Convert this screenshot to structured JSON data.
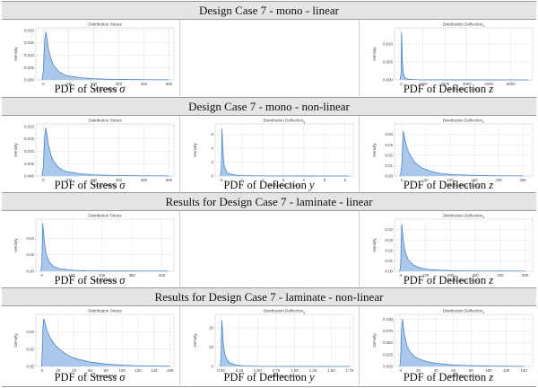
{
  "sections": [
    {
      "title": "Design Case 7 - mono - linear"
    },
    {
      "title": "Design Case 7 - mono - non-linear"
    },
    {
      "title": "Results for Design Case 7 - laminate - linear"
    },
    {
      "title": "Results for Design Case 7 - laminate - non-linear"
    }
  ],
  "colors": {
    "fill": "#a9c8ea",
    "line": "#4a86c8",
    "grid": "#e1e1e1",
    "header_bg": "#e4e4e4"
  },
  "chart_data": [
    {
      "section": 0,
      "slot": 0,
      "type": "area",
      "title": "Distribution Stress",
      "xlabel": "Stress [MPa]",
      "ylabel": "Density",
      "caption_text": "PDF of Stress ",
      "caption_sym": "σ",
      "xlim": [
        -30,
        520
      ],
      "ylim": [
        0,
        0.021
      ],
      "xticks": [
        0,
        100,
        200,
        300,
        400,
        500
      ],
      "xtick_labels": [
        "0",
        "100",
        "200",
        "300",
        "400",
        "500"
      ],
      "yticks": [
        0,
        0.005,
        0.01,
        0.015,
        0.02
      ],
      "ytick_labels": [
        "0.000",
        "0.005",
        "0.010",
        "0.015",
        "0.020"
      ],
      "x": [
        -5,
        0,
        5,
        10,
        15,
        20,
        30,
        40,
        60,
        80,
        100,
        150,
        200,
        250,
        300,
        400,
        500
      ],
      "y": [
        0,
        0.004,
        0.016,
        0.0195,
        0.016,
        0.0125,
        0.0085,
        0.006,
        0.0035,
        0.0022,
        0.0016,
        0.0009,
        0.0005,
        0.0003,
        0.0002,
        0.0001,
        5e-05
      ]
    },
    {
      "section": 0,
      "slot": 2,
      "type": "area",
      "title": "Distribution Deflection",
      "title_sub": "z",
      "xlabel": "Deflection",
      "xlabel_sub": "z",
      "xlabel_unit": " [mm]",
      "ylabel": "Density",
      "caption_text": "PDF of Deflection ",
      "caption_sym": "z",
      "xlim": [
        -300,
        6000
      ],
      "ylim": [
        0,
        0.0145
      ],
      "xticks": [
        0,
        1000,
        2000,
        3000,
        4000,
        5000
      ],
      "xtick_labels": [
        "0",
        "1000",
        "2000",
        "3000",
        "4000",
        "5000"
      ],
      "yticks": [
        0,
        0.005,
        0.01
      ],
      "ytick_labels": [
        "0.000",
        "0.005",
        "0.010"
      ],
      "x": [
        -50,
        0,
        20,
        40,
        60,
        100,
        150,
        200,
        300,
        500,
        800,
        1500,
        3000,
        5800
      ],
      "y": [
        0,
        0.002,
        0.0132,
        0.009,
        0.005,
        0.002,
        0.0009,
        0.0005,
        0.0002,
        0.0001,
        4e-05,
        2e-05,
        1e-05,
        0
      ]
    },
    {
      "section": 1,
      "slot": 0,
      "type": "area",
      "title": "Distribution Stress",
      "xlabel": "Stress [MPa]",
      "ylabel": "Density",
      "caption_text": "PDF of Stress ",
      "caption_sym": "σ",
      "xlim": [
        -30,
        520
      ],
      "ylim": [
        0,
        0.021
      ],
      "xticks": [
        0,
        100,
        200,
        300,
        400,
        500
      ],
      "xtick_labels": [
        "0",
        "100",
        "200",
        "300",
        "400",
        "500"
      ],
      "yticks": [
        0,
        0.005,
        0.01,
        0.015,
        0.02
      ],
      "ytick_labels": [
        "0.000",
        "0.005",
        "0.010",
        "0.015",
        "0.020"
      ],
      "x": [
        -5,
        0,
        5,
        10,
        15,
        20,
        30,
        40,
        60,
        80,
        100,
        150,
        200,
        250,
        300,
        400,
        500
      ],
      "y": [
        0,
        0.004,
        0.016,
        0.0195,
        0.016,
        0.0125,
        0.0085,
        0.006,
        0.0035,
        0.0022,
        0.0016,
        0.0009,
        0.0005,
        0.0003,
        0.0002,
        0.0001,
        5e-05
      ]
    },
    {
      "section": 1,
      "slot": 1,
      "type": "area",
      "title": "Distribution Deflection",
      "title_sub": "y",
      "xlabel": "Deflection",
      "xlabel_sub": "y",
      "xlabel_unit": " [mm]",
      "ylabel": "Density",
      "caption_text": "PDF of Deflection ",
      "caption_sym": "y",
      "xlim": [
        -0.3,
        6.4
      ],
      "ylim": [
        0,
        7.5
      ],
      "xticks": [
        0,
        1,
        2,
        3,
        4,
        5,
        6
      ],
      "xtick_labels": [
        "0",
        "1",
        "2",
        "3",
        "4",
        "5",
        "6"
      ],
      "yticks": [
        0,
        2,
        4,
        6
      ],
      "ytick_labels": [
        "0",
        "2",
        "4",
        "6"
      ],
      "x": [
        -0.05,
        0,
        0.03,
        0.06,
        0.1,
        0.15,
        0.25,
        0.4,
        0.7,
        1,
        2,
        4,
        6.2
      ],
      "y": [
        0,
        1,
        6.8,
        4.5,
        2.5,
        1.3,
        0.6,
        0.3,
        0.12,
        0.06,
        0.02,
        0.005,
        0
      ]
    },
    {
      "section": 1,
      "slot": 2,
      "type": "area",
      "title": "Distribution Deflection",
      "title_sub": "z",
      "xlabel": "Deflection",
      "xlabel_sub": "z",
      "xlabel_unit": " [mm]",
      "ylabel": "Density",
      "caption_text": "PDF of Deflection ",
      "caption_sym": "z",
      "xlim": [
        -15,
        270
      ],
      "ylim": [
        0,
        0.05
      ],
      "xticks": [
        0,
        50,
        100,
        150,
        200,
        250
      ],
      "xtick_labels": [
        "0",
        "50",
        "100",
        "150",
        "200",
        "250"
      ],
      "yticks": [
        0,
        0.01,
        0.02,
        0.03,
        0.04
      ],
      "ytick_labels": [
        "0.00",
        "0.01",
        "0.02",
        "0.03",
        "0.04"
      ],
      "x": [
        -3,
        0,
        3,
        6,
        10,
        15,
        25,
        40,
        60,
        80,
        100,
        150,
        200,
        250
      ],
      "y": [
        0,
        0.01,
        0.043,
        0.036,
        0.028,
        0.022,
        0.014,
        0.008,
        0.0045,
        0.0025,
        0.0015,
        0.0006,
        0.0002,
        0.0001
      ]
    },
    {
      "section": 2,
      "slot": 0,
      "type": "area",
      "title": "Distribution Stress",
      "xlabel": "Stress [MPa]",
      "ylabel": "Density",
      "caption_text": "PDF of Stress ",
      "caption_sym": "σ",
      "xlim": [
        -20,
        440
      ],
      "ylim": [
        0,
        0.063
      ],
      "xticks": [
        0,
        100,
        200,
        300,
        400
      ],
      "xtick_labels": [
        "0",
        "100",
        "200",
        "300",
        "400"
      ],
      "yticks": [
        0,
        0.02,
        0.04
      ],
      "ytick_labels": [
        "0.00",
        "0.02",
        "0.04"
      ],
      "x": [
        -3,
        0,
        3,
        6,
        10,
        15,
        25,
        40,
        60,
        100,
        150,
        250,
        420
      ],
      "y": [
        0,
        0.01,
        0.058,
        0.045,
        0.03,
        0.02,
        0.011,
        0.0055,
        0.003,
        0.0012,
        0.0005,
        0.0002,
        0.0001
      ]
    },
    {
      "section": 2,
      "slot": 2,
      "type": "area",
      "title": "Distribution Deflection",
      "title_sub": "z",
      "xlabel": "Deflection",
      "xlabel_sub": "z",
      "xlabel_unit": " [mm]",
      "ylabel": "Density",
      "caption_text": "PDF of Deflection ",
      "caption_sym": "z",
      "xlim": [
        -25,
        530
      ],
      "ylim": [
        0,
        0.05
      ],
      "xticks": [
        0,
        100,
        200,
        300,
        400,
        500
      ],
      "xtick_labels": [
        "0",
        "100",
        "200",
        "300",
        "400",
        "500"
      ],
      "yticks": [
        0,
        0.01,
        0.02,
        0.03,
        0.04
      ],
      "ytick_labels": [
        "0.00",
        "0.01",
        "0.02",
        "0.03",
        "0.04"
      ],
      "x": [
        -4,
        0,
        4,
        8,
        12,
        20,
        30,
        50,
        80,
        120,
        200,
        300,
        500
      ],
      "y": [
        0,
        0.008,
        0.045,
        0.035,
        0.026,
        0.017,
        0.011,
        0.006,
        0.003,
        0.0015,
        0.0006,
        0.0002,
        0.0001
      ]
    },
    {
      "section": 3,
      "slot": 0,
      "type": "area",
      "title": "Distribution Stress",
      "xlabel": "Stress [MPa]",
      "ylabel": "Density",
      "caption_text": "PDF of Stress ",
      "caption_sym": "σ",
      "xlim": [
        -8,
        165
      ],
      "ylim": [
        0,
        0.06
      ],
      "xticks": [
        0,
        20,
        40,
        60,
        80,
        100,
        120,
        140,
        160
      ],
      "xtick_labels": [
        "0",
        "20",
        "40",
        "60",
        "80",
        "100",
        "120",
        "140",
        "160"
      ],
      "yticks": [
        0,
        0.02,
        0.04
      ],
      "ytick_labels": [
        "0.00",
        "0.02",
        "0.04"
      ],
      "x": [
        -1,
        0,
        1,
        2,
        4,
        6,
        10,
        15,
        20,
        30,
        40,
        60,
        80,
        100,
        120,
        160
      ],
      "y": [
        0,
        0.015,
        0.045,
        0.055,
        0.048,
        0.041,
        0.033,
        0.026,
        0.021,
        0.014,
        0.0095,
        0.005,
        0.0028,
        0.0015,
        0.0008,
        0.0002
      ]
    },
    {
      "section": 3,
      "slot": 1,
      "type": "area",
      "title": "Distribution Deflection",
      "title_sub": "y",
      "xlabel": "Deflection",
      "xlabel_sub": "y",
      "xlabel_unit": " [mm]",
      "ylabel": "Density",
      "caption_text": "PDF of Deflection ",
      "caption_sym": "y",
      "xlim": [
        -0.08,
        1.8
      ],
      "ylim": [
        0,
        27
      ],
      "xticks": [
        0,
        0.25,
        0.5,
        0.75,
        1,
        1.25,
        1.5,
        1.75
      ],
      "xtick_labels": [
        "0.00",
        "0.25",
        "0.50",
        "0.75",
        "1.00",
        "1.25",
        "1.50",
        "1.75"
      ],
      "yticks": [
        0,
        10,
        20
      ],
      "ytick_labels": [
        "0",
        "10",
        "20"
      ],
      "x": [
        -0.01,
        0,
        0.01,
        0.02,
        0.03,
        0.05,
        0.08,
        0.12,
        0.2,
        0.3,
        0.5,
        1,
        1.75
      ],
      "y": [
        0,
        5,
        24,
        18,
        12,
        6.5,
        3.5,
        1.8,
        0.8,
        0.35,
        0.12,
        0.03,
        0
      ]
    },
    {
      "section": 3,
      "slot": 2,
      "type": "area",
      "title": "Distribution Deflection",
      "title_sub": "z",
      "xlabel": "Deflection",
      "xlabel_sub": "z",
      "xlabel_unit": " [mm]",
      "ylabel": "Density",
      "caption_text": "PDF of Deflection ",
      "caption_sym": "z",
      "xlim": [
        -7,
        150
      ],
      "ylim": [
        0,
        0.11
      ],
      "xticks": [
        0,
        20,
        40,
        60,
        80,
        100,
        120,
        140
      ],
      "xtick_labels": [
        "0",
        "20",
        "40",
        "60",
        "80",
        "100",
        "120",
        "140"
      ],
      "yticks": [
        0,
        0.025,
        0.05,
        0.075,
        0.1
      ],
      "ytick_labels": [
        "0.000",
        "0.025",
        "0.050",
        "0.075",
        "0.100"
      ],
      "x": [
        -1,
        0,
        1,
        2,
        4,
        7,
        10,
        15,
        20,
        30,
        40,
        60,
        80,
        100,
        140
      ],
      "y": [
        0,
        0.02,
        0.08,
        0.1,
        0.07,
        0.045,
        0.032,
        0.022,
        0.016,
        0.01,
        0.0065,
        0.003,
        0.0015,
        0.0008,
        0.0002
      ]
    }
  ]
}
